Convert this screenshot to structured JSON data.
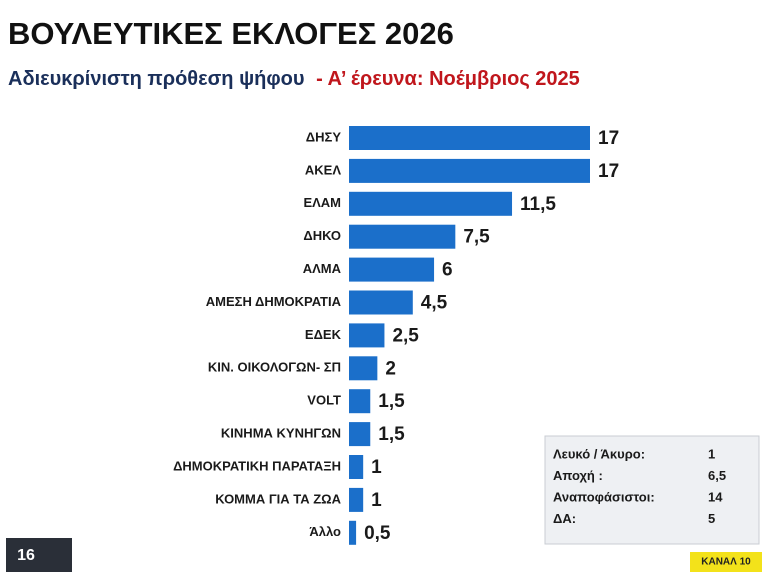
{
  "chart_data": {
    "type": "barh",
    "title": "ΒΟΥΛΕΥΤΙΚΕΣ ΕΚΛΟΓΕΣ 2026",
    "subtitle": "Αδιευκρίνιστη πρόθεση ψήφου",
    "subtitle_note": "- Α’ έρευνα:  Νοέμβριος 2025",
    "categories": [
      "ΔΗΣΥ",
      "ΑΚΕΛ",
      "ΕΛΑΜ",
      "ΔΗΚΟ",
      "ΑΛΜΑ",
      "ΑΜΕΣΗ ΔΗΜΟΚΡΑΤΙΑ",
      "ΕΔΕΚ",
      "ΚΙΝ. ΟΙΚΟΛΟΓΩΝ- ΣΠ",
      "VOLT",
      "ΚΙΝΗΜΑ ΚΥΝΗΓΩΝ",
      "ΔΗΜΟΚΡΑΤΙΚΗ ΠΑΡΑΤΑΞΗ",
      "ΚΟΜΜΑ ΓΙΑ ΤΑ ΖΩΑ",
      "Άλλο"
    ],
    "values": [
      17,
      17,
      11.5,
      7.5,
      6,
      4.5,
      2.5,
      2,
      1.5,
      1.5,
      1,
      1,
      0.5
    ],
    "value_labels": [
      "17",
      "17",
      "11,5",
      "7,5",
      "6",
      "4,5",
      "2,5",
      "2",
      "1,5",
      "1,5",
      "1",
      "1",
      "0,5"
    ],
    "color": "#1b6fca",
    "xlim": [
      0,
      17
    ]
  },
  "side_table": {
    "rows": [
      [
        "Λευκό / Άκυρο:",
        "1"
      ],
      [
        "Αποχή :",
        "6,5"
      ],
      [
        "Αναποφάσιστοι:",
        "14"
      ],
      [
        "ΔΑ:",
        "5"
      ]
    ]
  },
  "logos": {
    "left": "16",
    "right": "ΚΑΝΑΛ 10"
  }
}
